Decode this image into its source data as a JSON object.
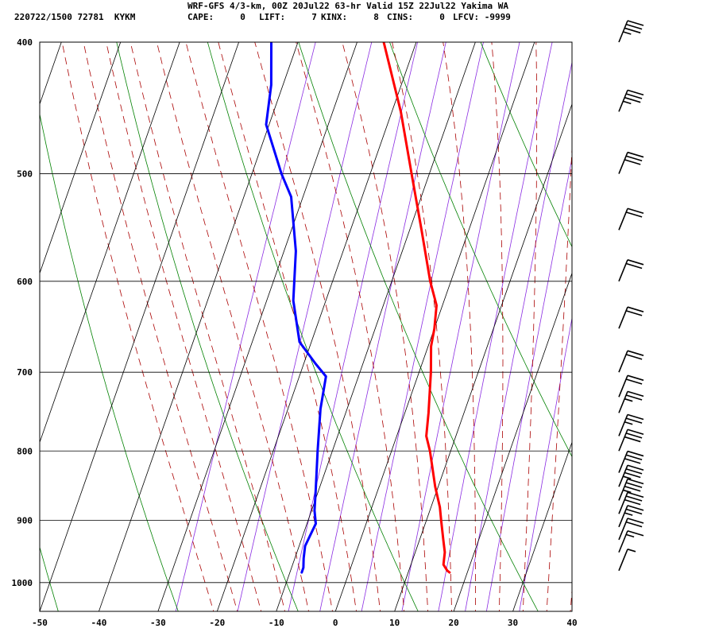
{
  "header": {
    "title": "WRF-GFS 4/3-km, 00Z 20Jul22 63-hr Valid 15Z 22Jul22 Yakima WA",
    "station": "220722/1500 72781  KYKM",
    "cape": "CAPE:     0",
    "lift": "LIFT:     7",
    "kinx": "KINX:     8",
    "cins": "CINS:     0",
    "lfcv": "LFCV: -9999"
  },
  "colors": {
    "temperature": "#ff0000",
    "dewpoint": "#0000ff",
    "isotherm_grid": "#000000",
    "dry_adiabat": "#008000",
    "moist_adiabat": "#aa0000",
    "mixing_ratio": "#8a2be2",
    "wind_barb": "#000000"
  },
  "chart_data": {
    "type": "line",
    "title": "WRF-GFS 4/3-km, 00Z 20Jul22 63-hr Valid 15Z 22Jul22 Yakima WA",
    "xlabel": "",
    "ylabel": "",
    "x_axis": {
      "ticks": [
        -50,
        -40,
        -30,
        -20,
        -10,
        0,
        10,
        20,
        30,
        40
      ],
      "range": [
        -50,
        40
      ],
      "skewed": true
    },
    "y_axis": {
      "ticks": [
        400,
        500,
        600,
        700,
        800,
        900,
        1000
      ],
      "range": [
        400,
        1050
      ],
      "scale": "log",
      "inverted": true
    },
    "grid": true,
    "legend": "none",
    "series": [
      {
        "kind": "temperature",
        "points": [
          {
            "p": 400,
            "t": -25.5
          },
          {
            "p": 450,
            "t": -18.5
          },
          {
            "p": 500,
            "t": -13
          },
          {
            "p": 550,
            "t": -8
          },
          {
            "p": 600,
            "t": -3.5
          },
          {
            "p": 625,
            "t": -1
          },
          {
            "p": 650,
            "t": 0
          },
          {
            "p": 670,
            "t": 0.5
          },
          {
            "p": 700,
            "t": 2
          },
          {
            "p": 750,
            "t": 4
          },
          {
            "p": 780,
            "t": 5
          },
          {
            "p": 800,
            "t": 6.5
          },
          {
            "p": 850,
            "t": 9.5
          },
          {
            "p": 880,
            "t": 11.5
          },
          {
            "p": 900,
            "t": 12.5
          },
          {
            "p": 930,
            "t": 14
          },
          {
            "p": 950,
            "t": 15
          },
          {
            "p": 970,
            "t": 15.5
          },
          {
            "p": 980,
            "t": 16.5
          },
          {
            "p": 983,
            "t": 17
          }
        ]
      },
      {
        "kind": "dewpoint",
        "points": [
          {
            "p": 400,
            "t": -44.5
          },
          {
            "p": 430,
            "t": -42
          },
          {
            "p": 460,
            "t": -40.5
          },
          {
            "p": 500,
            "t": -35
          },
          {
            "p": 520,
            "t": -32
          },
          {
            "p": 570,
            "t": -28
          },
          {
            "p": 620,
            "t": -25.5
          },
          {
            "p": 665,
            "t": -22
          },
          {
            "p": 690,
            "t": -18
          },
          {
            "p": 705,
            "t": -15.5
          },
          {
            "p": 745,
            "t": -14.5
          },
          {
            "p": 800,
            "t": -12.5
          },
          {
            "p": 855,
            "t": -10.5
          },
          {
            "p": 885,
            "t": -9.5
          },
          {
            "p": 905,
            "t": -8.5
          },
          {
            "p": 940,
            "t": -9
          },
          {
            "p": 960,
            "t": -8.5
          },
          {
            "p": 975,
            "t": -8
          },
          {
            "p": 983,
            "t": -8
          }
        ]
      }
    ],
    "wind_barbs": [
      {
        "p": 400,
        "speed_kt": 35
      },
      {
        "p": 450,
        "speed_kt": 35
      },
      {
        "p": 500,
        "speed_kt": 30
      },
      {
        "p": 550,
        "speed_kt": 20
      },
      {
        "p": 600,
        "speed_kt": 20
      },
      {
        "p": 650,
        "speed_kt": 20
      },
      {
        "p": 700,
        "speed_kt": 20
      },
      {
        "p": 730,
        "speed_kt": 20
      },
      {
        "p": 750,
        "speed_kt": 25
      },
      {
        "p": 780,
        "speed_kt": 25
      },
      {
        "p": 800,
        "speed_kt": 30
      },
      {
        "p": 830,
        "speed_kt": 30
      },
      {
        "p": 850,
        "speed_kt": 35
      },
      {
        "p": 870,
        "speed_kt": 35
      },
      {
        "p": 890,
        "speed_kt": 30
      },
      {
        "p": 910,
        "speed_kt": 25
      },
      {
        "p": 930,
        "speed_kt": 20
      },
      {
        "p": 950,
        "speed_kt": 15
      },
      {
        "p": 980,
        "speed_kt": 5
      }
    ]
  }
}
